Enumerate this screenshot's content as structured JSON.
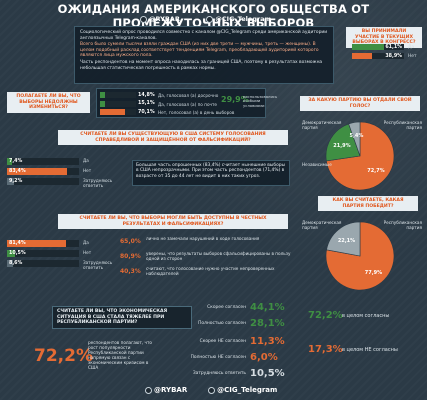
{
  "header": {
    "title": "ОЖИДАНИЯ АМЕРИКАНСКОГО ОБЩЕСТВА ОТ ПРОМЕЖУТОЧНЫХ ВЫБОРОВ",
    "brand_rybar": "@RYBAR",
    "brand_tg": "@CIG_Telegram"
  },
  "intro": {
    "p1": "Социологический опрос проводился совместно с каналом @CIG_Telegram среди американской аудитории англоязычных Telegram-каналов.",
    "p2": "Всего было сумели тысячи взяли граждан США (из них две трети — мужчины, треть — женщины). В целом подобный расклад соответствует тенденциям Telegram, преобладающей аудиторией которого являются лица мужского пола.",
    "p3": "Часть респондентов на момент опроса находилась за границей США, поэтому в результатах возможна небольшая статистическая погрешность в рамках нормы."
  },
  "participation": {
    "question": "ВЫ ПРИНИМАЛИ УЧАСТИЕ В ТЕКУЩИХ ВЫБОРАХ В КОНГРЕСС?",
    "items": [
      {
        "label": "Да",
        "value": "61,1%",
        "fraction": 0.611
      },
      {
        "label": "Нет",
        "value": "38,9%",
        "fraction": 0.389
      }
    ]
  },
  "party_choice": {
    "question": "ЗА КАКУЮ ПАРТИЮ ВЫ ОТДАЛИ СВОЙ ГОЛОС?",
    "slices": [
      {
        "label": "Республиканская партия",
        "value": "72,7%",
        "fraction": 0.727,
        "color": "#e46b34"
      },
      {
        "label": "Демократическая партия",
        "value": "21,9%",
        "fraction": 0.219,
        "color": "#3f8f43"
      },
      {
        "label": "Независимые",
        "value": "5,4%",
        "fraction": 0.054,
        "color": "#9aa7ae"
      }
    ]
  },
  "fair_elections": {
    "question": "ПОЛАГАЕТЕ ЛИ ВЫ, ЧТО ВЫБОРЫ НЕДОЛЖНЫ ИЗМЕНИТЬСЯ?",
    "items": [
      {
        "value": "14,8%",
        "label": "Да, голосовал (а) досрочно",
        "fraction": 0.148,
        "color": "#3f8f43"
      },
      {
        "value": "15,1%",
        "label": "Да, голосовал (а) по почте",
        "fraction": 0.151,
        "color": "#3f8f43"
      },
      {
        "value": "70,1%",
        "label": "Нет, голосовал (а) в день выборов",
        "fraction": 0.701,
        "color": "#e46b34"
      }
    ],
    "side_value": "29,9%",
    "side_label": "воспользовались особыми условиями"
  },
  "system_trust": {
    "question": "СЧИТАЕТЕ ЛИ ВЫ СУЩЕСТВУЮЩУЮ В США СИСТЕМУ ГОЛОСОВАНИЯ СПРАВЕДЛИВОЙ И ЗАЩИЩЁННОЙ ОТ ФАЛЬСИФИКАЦИЙ?",
    "items": [
      {
        "value": "7,4%",
        "label": "Да",
        "fraction": 0.074,
        "color": "#3f8f43"
      },
      {
        "value": "83,4%",
        "label": "Нет",
        "fraction": 0.834,
        "color": "#e46b34"
      },
      {
        "value": "9,2%",
        "label": "Затрудняюсь ответить",
        "fraction": 0.092,
        "color": "#5a6b76"
      }
    ],
    "note": "Большая часть опрошенных (83,4%) считает нынешние выборы в США непрозрачными. При этом часть респондентов (71,4%) в возрасте от 35 до 44 лет не видит в них таких угроз."
  },
  "expected_winner": {
    "question": "КАК ВЫ СЧИТАЕТЕ, КАКАЯ ПАРТИЯ ПОБЕДИТ?",
    "slices": [
      {
        "label": "Республиканская партия",
        "value": "77,9%",
        "fraction": 0.779,
        "color": "#e46b34"
      },
      {
        "label": "Демократическая партия",
        "value": "22,1%",
        "fraction": 0.221,
        "color": "#9aa7ae"
      }
    ]
  },
  "violations": {
    "question": "СЧИТАЕТЕ ЛИ ВЫ, ЧТО ВЫБОРЫ МОГЛИ БЫТЬ ДОСТУПНЫ В ЧЕСТНЫХ РЕЗУЛЬТАТАХ И ФАЛЬСИФИКАЦИЯХ?",
    "items": [
      {
        "value": "81,4%",
        "label": "Да",
        "fraction": 0.814,
        "color": "#e46b34"
      },
      {
        "value": "10,5%",
        "label": "Нет",
        "fraction": 0.105,
        "color": "#3f8f43"
      },
      {
        "value": "8,6%",
        "label": "Затрудняюсь ответить",
        "fraction": 0.086,
        "color": "#5a6b76"
      }
    ],
    "right_rows": [
      {
        "value": "65,0%",
        "text": "лично не замечали нарушений в ходе голосования"
      },
      {
        "value": "80,9%",
        "text": "уверены, что результаты выборов сфальсифицированы в пользу одной из сторон"
      },
      {
        "value": "40,3%",
        "text": "считают, что голосование нужно участие непроверенных наблюдателей"
      }
    ]
  },
  "economy": {
    "question": "СЧИТАЕТЕ ЛИ ВЫ, ЧТО ЭКОНОМИЧЕСКАЯ СИТУАЦИЯ В США СТАЛА ТЯЖЕЛЕЕ ПРИ РЕСПУБЛИКАНСКОЙ ПАРТИИ?",
    "big_value": "72,2%",
    "big_text": "респондентов полагают, что рост популярности Республиканской партии напрямую связан с экономическим кризисом в США",
    "rows": [
      {
        "label": "Скорее согласен",
        "value": "44,1%",
        "color": "#3f8f43"
      },
      {
        "label": "Полностью согласен",
        "value": "28,1%",
        "color": "#3f8f43"
      },
      {
        "label": "Скорее НЕ согласен",
        "value": "11,3%",
        "color": "#e46b34"
      },
      {
        "label": "Полностью НЕ согласен",
        "value": "6,0%",
        "color": "#e46b34"
      },
      {
        "label": "Затрудняюсь ответить",
        "value": "10,5%",
        "color": "#d6dde2"
      }
    ],
    "agree_total": "72,2%",
    "agree_text": "в целом согласны",
    "disagree_total": "17,3%",
    "disagree_text": "в целом НЕ согласны"
  },
  "colors": {
    "accent": "#e46b34",
    "green": "#3f8f43",
    "bg": "#2b3a46"
  }
}
